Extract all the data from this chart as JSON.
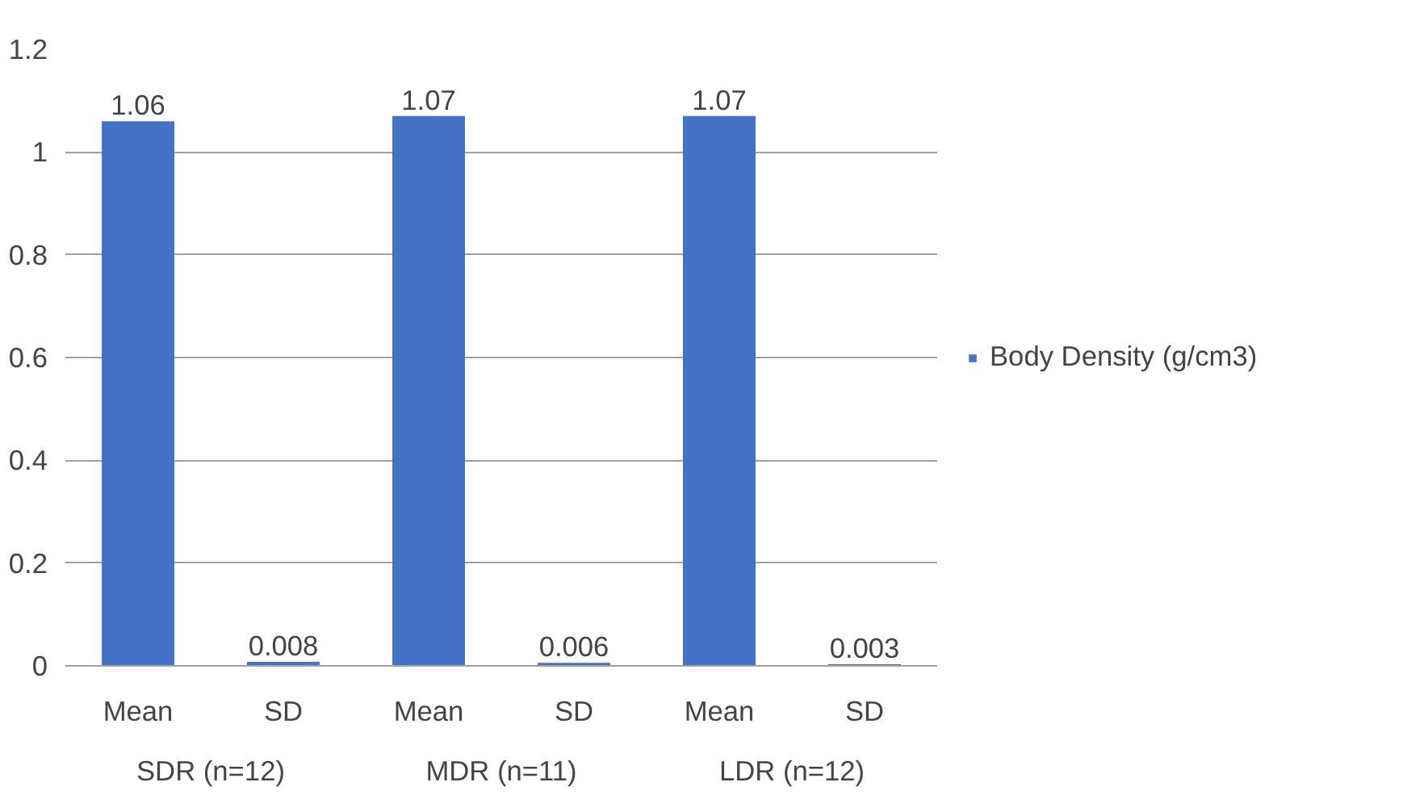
{
  "chart_data": {
    "type": "bar",
    "categories": [
      "Mean",
      "SD",
      "Mean",
      "SD",
      "Mean",
      "SD"
    ],
    "annotations": [
      "SDR (n=12)",
      "MDR (n=11)",
      "LDR (n=12)"
    ],
    "series": [
      {
        "name": "Body Density (g/cm3)",
        "color": "#4472c4",
        "values": [
          1.06,
          0.008,
          1.07,
          0.006,
          1.07,
          0.003
        ]
      }
    ],
    "ylim": [
      0,
      1.2
    ],
    "yticks": [
      0,
      0.2,
      0.4,
      0.6,
      0.8,
      1,
      1.2
    ],
    "grid": "y",
    "legend": "right",
    "data_labels": true
  }
}
